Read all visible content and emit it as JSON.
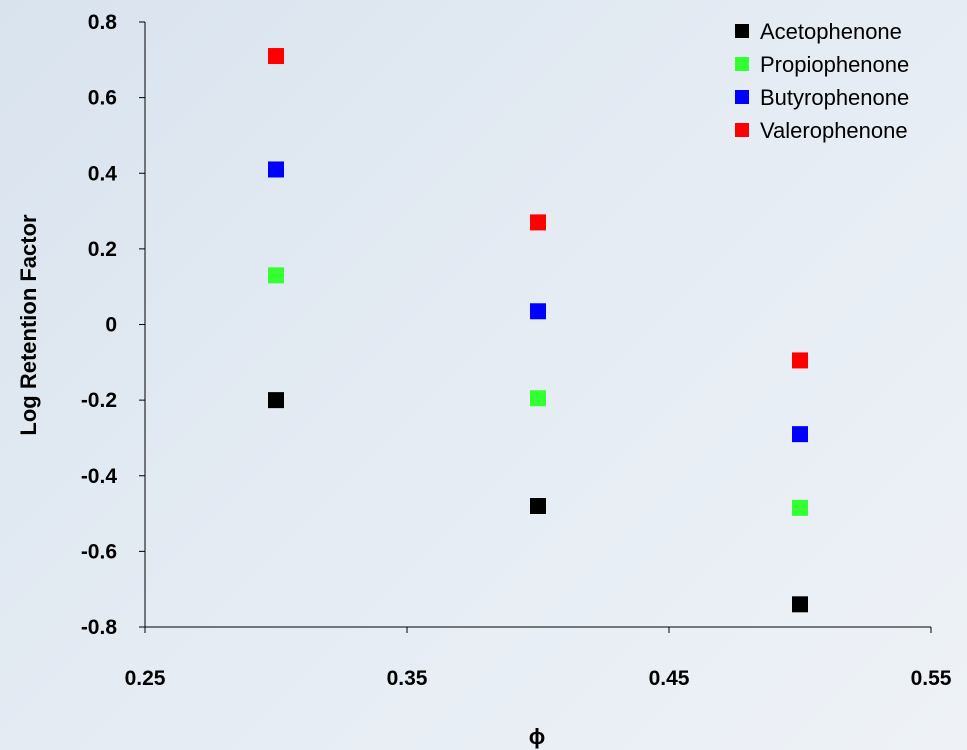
{
  "chart_data": {
    "type": "scatter",
    "title": "",
    "xlabel": "ϕ",
    "ylabel": "Log Retention Factor",
    "xlim": [
      0.25,
      0.55
    ],
    "ylim": [
      -0.8,
      0.8
    ],
    "xticks": [
      "0.25",
      "0.35",
      "0.45",
      "0.55"
    ],
    "yticks": [
      "0.8",
      "0.6",
      "0.4",
      "0.2",
      "0",
      "-0.2",
      "-0.4",
      "-0.6",
      "-0.8"
    ],
    "grid": false,
    "legend_position": "top-right",
    "series": [
      {
        "name": "Acetophenone",
        "color": "#000000",
        "x": [
          0.3,
          0.4,
          0.5
        ],
        "y": [
          -0.2,
          -0.48,
          -0.74
        ]
      },
      {
        "name": "Propiophenone",
        "color": "#33ff33",
        "x": [
          0.3,
          0.4,
          0.5
        ],
        "y": [
          0.13,
          -0.195,
          -0.485
        ]
      },
      {
        "name": "Butyrophenone",
        "color": "#0000ff",
        "x": [
          0.3,
          0.4,
          0.5
        ],
        "y": [
          0.41,
          0.035,
          -0.29
        ]
      },
      {
        "name": "Valerophenone",
        "color": "#ff0000",
        "x": [
          0.3,
          0.4,
          0.5
        ],
        "y": [
          0.71,
          0.27,
          -0.095
        ]
      }
    ]
  }
}
